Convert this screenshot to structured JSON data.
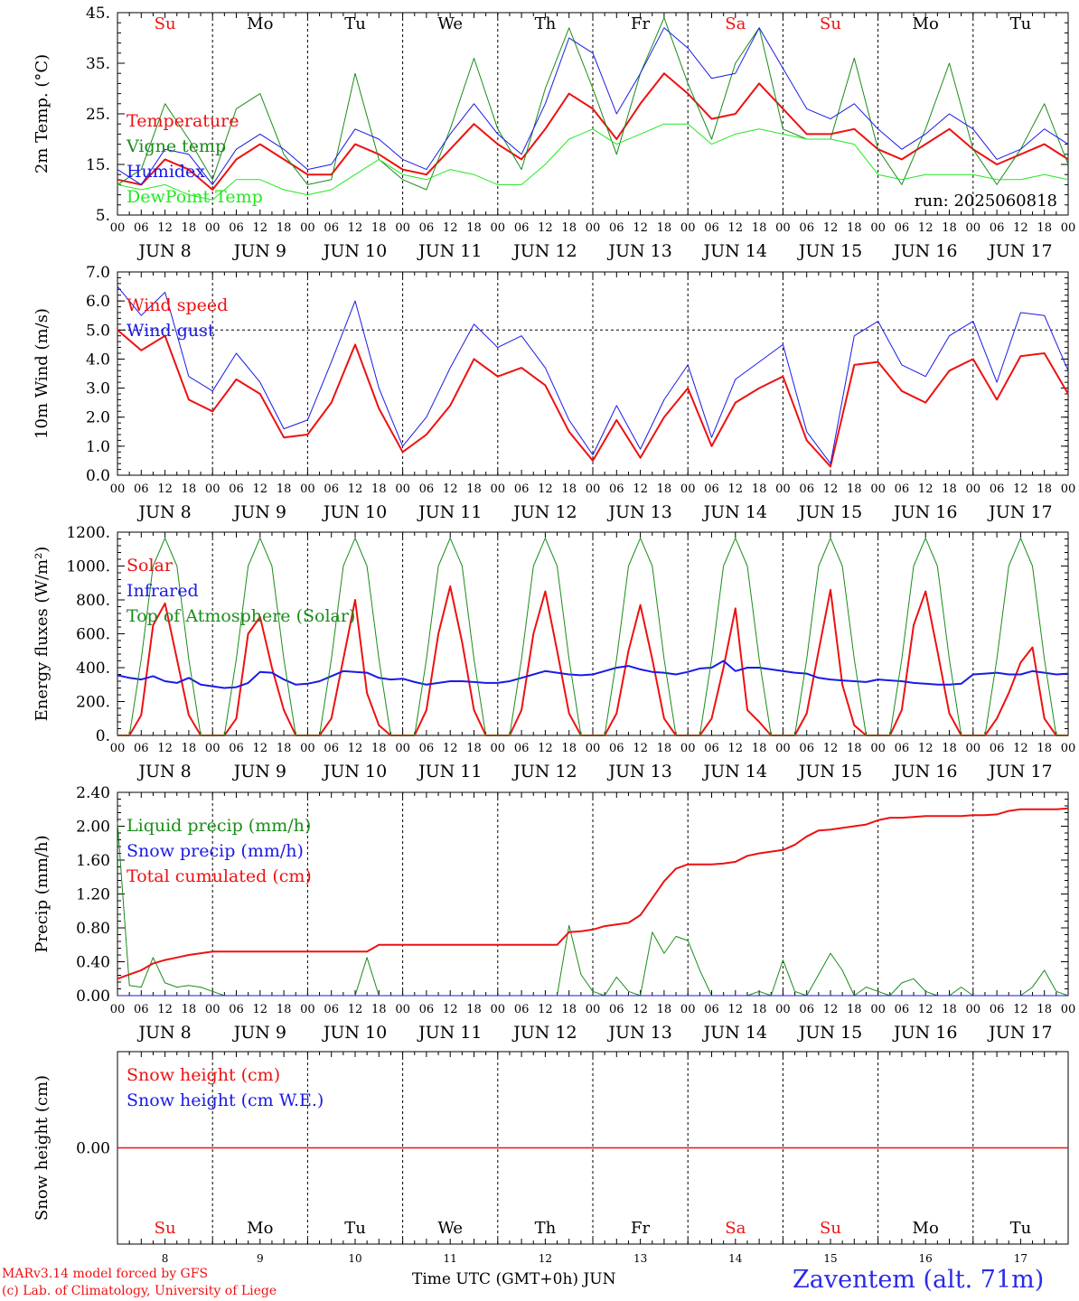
{
  "colors": {
    "red": "#ee1111",
    "green": "#1a8c1a",
    "blue": "#1a1ae8",
    "lime": "#22e822",
    "frame": "#000000"
  },
  "footer": {
    "credit_line_1": "MARv3.14 model forced by GFS",
    "credit_line_2": "(c) Lab. of Climatology, University of Liege",
    "xaxis_title": "Time UTC (GMT+0h) JUN",
    "station": "Zaventem (alt. 71m)"
  },
  "chart_data": [
    {
      "type": "line",
      "ylabel": "2m Temp. (°C)",
      "yticks": [
        "5.",
        "15.",
        "25.",
        "35.",
        "45."
      ],
      "ylim": [
        5,
        45
      ],
      "run_label": "run: 2025060818",
      "days": [
        "Su",
        "Mo",
        "Tu",
        "We",
        "Th",
        "Fr",
        "Sa",
        "Su",
        "Mo",
        "Tu"
      ],
      "day_colors": [
        "red",
        "black",
        "black",
        "black",
        "black",
        "black",
        "red",
        "red",
        "black",
        "black"
      ],
      "x_hours": [
        0,
        6,
        12,
        18,
        24,
        30,
        36,
        42,
        48,
        54,
        60,
        66,
        72,
        78,
        84,
        90,
        96,
        102,
        108,
        114,
        120,
        126,
        132,
        138,
        144,
        150,
        156,
        162,
        168,
        174,
        180,
        186,
        192,
        198,
        204,
        210,
        216,
        222,
        228,
        234,
        240
      ],
      "series": [
        {
          "name": "Temperature",
          "color": "red",
          "width": 2,
          "values": [
            12,
            11,
            16,
            14,
            10,
            16,
            19,
            16,
            13,
            13,
            19,
            17,
            14,
            13,
            18,
            23,
            19,
            16,
            22,
            29,
            26,
            20,
            27,
            33,
            29,
            24,
            25,
            31,
            26,
            21,
            21,
            22,
            18,
            16,
            19,
            22,
            18,
            15,
            17,
            19,
            16
          ]
        },
        {
          "name": "Vigne temp",
          "color": "green",
          "width": 1,
          "values": [
            11,
            14,
            27,
            20,
            12,
            26,
            29,
            17,
            11,
            12,
            33,
            16,
            12,
            10,
            22,
            36,
            22,
            14,
            30,
            42,
            30,
            17,
            33,
            44,
            31,
            20,
            35,
            42,
            22,
            20,
            20,
            36,
            18,
            11,
            22,
            35,
            18,
            11,
            18,
            27,
            15
          ]
        },
        {
          "name": "Humidex",
          "color": "blue",
          "width": 1,
          "values": [
            14,
            11,
            18,
            17,
            11,
            18,
            21,
            18,
            14,
            15,
            22,
            20,
            16,
            14,
            21,
            27,
            21,
            17,
            27,
            40,
            37,
            25,
            33,
            42,
            38,
            32,
            33,
            42,
            34,
            26,
            24,
            27,
            22,
            18,
            21,
            25,
            22,
            16,
            18,
            22,
            19
          ]
        },
        {
          "name": "DewPoint Temp",
          "color": "lime",
          "width": 1,
          "values": [
            11,
            10,
            11,
            9,
            8,
            12,
            12,
            10,
            9,
            10,
            13,
            16,
            13,
            12,
            14,
            13,
            11,
            11,
            15,
            20,
            22,
            19,
            21,
            23,
            23,
            19,
            21,
            22,
            21,
            20,
            20,
            19,
            13,
            12,
            13,
            13,
            13,
            12,
            12,
            13,
            12
          ]
        }
      ]
    },
    {
      "type": "line",
      "ylabel": "10m Wind (m/s)",
      "yticks": [
        "0.0",
        "1.0",
        "2.0",
        "3.0",
        "4.0",
        "5.0",
        "6.0",
        "7.0"
      ],
      "ylim": [
        0,
        7
      ],
      "reference_line": 5.0,
      "x_hours": [
        0,
        6,
        12,
        18,
        24,
        30,
        36,
        42,
        48,
        54,
        60,
        66,
        72,
        78,
        84,
        90,
        96,
        102,
        108,
        114,
        120,
        126,
        132,
        138,
        144,
        150,
        156,
        162,
        168,
        174,
        180,
        186,
        192,
        198,
        204,
        210,
        216,
        222,
        228,
        234,
        240
      ],
      "series": [
        {
          "name": "Wind speed",
          "color": "red",
          "width": 2,
          "values": [
            5.0,
            4.3,
            4.8,
            2.6,
            2.2,
            3.3,
            2.8,
            1.3,
            1.4,
            2.5,
            4.5,
            2.3,
            0.8,
            1.4,
            2.4,
            4.0,
            3.4,
            3.7,
            3.1,
            1.5,
            0.5,
            1.9,
            0.6,
            2.0,
            3.0,
            1.0,
            2.5,
            3.0,
            3.4,
            1.2,
            0.3,
            3.8,
            3.9,
            2.9,
            2.5,
            3.6,
            4.0,
            2.6,
            4.1,
            4.2,
            2.8
          ]
        },
        {
          "name": "Wind gust",
          "color": "blue",
          "width": 1,
          "values": [
            6.5,
            5.5,
            6.3,
            3.4,
            2.9,
            4.2,
            3.2,
            1.6,
            1.9,
            3.9,
            6.0,
            3.0,
            1.0,
            2.0,
            3.7,
            5.2,
            4.4,
            4.8,
            3.7,
            1.9,
            0.7,
            2.4,
            0.9,
            2.6,
            3.8,
            1.3,
            3.3,
            3.9,
            4.5,
            1.5,
            0.4,
            4.8,
            5.3,
            3.8,
            3.4,
            4.8,
            5.3,
            3.2,
            5.6,
            5.5,
            3.6
          ]
        }
      ]
    },
    {
      "type": "line",
      "ylabel": "Energy fluxes (W/m²)",
      "yticks": [
        "0.",
        "200.",
        "400.",
        "600.",
        "800.",
        "1000.",
        "1200."
      ],
      "ylim": [
        0,
        1200
      ],
      "x_hours": [
        0,
        3,
        6,
        9,
        12,
        15,
        18,
        21,
        24,
        27,
        30,
        33,
        36,
        39,
        42,
        45,
        48,
        51,
        54,
        57,
        60,
        63,
        66,
        69,
        72,
        75,
        78,
        81,
        84,
        87,
        90,
        93,
        96,
        99,
        102,
        105,
        108,
        111,
        114,
        117,
        120,
        123,
        126,
        129,
        132,
        135,
        138,
        141,
        144,
        147,
        150,
        153,
        156,
        159,
        162,
        165,
        168,
        171,
        174,
        177,
        180,
        183,
        186,
        189,
        192,
        195,
        198,
        201,
        204,
        207,
        210,
        213,
        216,
        219,
        222,
        225,
        228,
        231,
        234,
        237,
        240
      ],
      "series": [
        {
          "name": "Solar",
          "color": "red",
          "width": 2,
          "values": [
            0,
            0,
            120,
            650,
            780,
            450,
            120,
            0,
            0,
            0,
            100,
            600,
            700,
            400,
            150,
            0,
            0,
            0,
            100,
            450,
            800,
            250,
            60,
            0,
            0,
            0,
            150,
            600,
            880,
            550,
            150,
            0,
            0,
            0,
            150,
            600,
            850,
            500,
            130,
            0,
            0,
            0,
            130,
            500,
            770,
            450,
            100,
            0,
            0,
            0,
            100,
            400,
            750,
            150,
            80,
            0,
            0,
            0,
            130,
            500,
            860,
            300,
            60,
            0,
            0,
            0,
            150,
            650,
            850,
            500,
            130,
            0,
            0,
            0,
            100,
            250,
            430,
            520,
            100,
            0,
            0
          ]
        },
        {
          "name": "Infrared",
          "color": "blue",
          "width": 2,
          "values": [
            355,
            340,
            330,
            350,
            320,
            310,
            340,
            300,
            290,
            280,
            285,
            310,
            375,
            370,
            330,
            300,
            305,
            320,
            350,
            380,
            375,
            370,
            340,
            330,
            335,
            315,
            300,
            310,
            320,
            320,
            315,
            310,
            310,
            320,
            340,
            360,
            380,
            370,
            360,
            355,
            360,
            380,
            400,
            410,
            390,
            375,
            370,
            360,
            375,
            395,
            400,
            440,
            380,
            400,
            400,
            390,
            380,
            370,
            365,
            340,
            330,
            325,
            320,
            315,
            330,
            325,
            320,
            310,
            305,
            300,
            300,
            305,
            360,
            365,
            370,
            360,
            360,
            380,
            370,
            360,
            365
          ]
        },
        {
          "name": "Top of Atmosphere (Solar)",
          "color": "green",
          "width": 1,
          "values": [
            0,
            0,
            450,
            1000,
            1165,
            1000,
            450,
            0,
            0,
            0,
            450,
            1000,
            1165,
            1000,
            450,
            0,
            0,
            0,
            450,
            1000,
            1165,
            1000,
            450,
            0,
            0,
            0,
            450,
            1000,
            1165,
            1000,
            450,
            0,
            0,
            0,
            450,
            1000,
            1165,
            1000,
            450,
            0,
            0,
            0,
            450,
            1000,
            1165,
            1000,
            450,
            0,
            0,
            0,
            450,
            1000,
            1165,
            1000,
            450,
            0,
            0,
            0,
            450,
            1000,
            1165,
            1000,
            450,
            0,
            0,
            0,
            450,
            1000,
            1165,
            1000,
            450,
            0,
            0,
            0,
            450,
            1000,
            1165,
            1000,
            450,
            0,
            0
          ]
        }
      ]
    },
    {
      "type": "line",
      "ylabel": "Precip (mm/h)",
      "yticks": [
        "0.00",
        "0.40",
        "0.80",
        "1.20",
        "1.60",
        "2.00",
        "2.40"
      ],
      "ylim": [
        0,
        2.4
      ],
      "x_hours": [
        0,
        3,
        6,
        9,
        12,
        15,
        18,
        21,
        24,
        27,
        30,
        33,
        36,
        39,
        42,
        45,
        48,
        51,
        54,
        57,
        60,
        63,
        66,
        69,
        72,
        75,
        78,
        81,
        84,
        87,
        90,
        93,
        96,
        99,
        102,
        105,
        108,
        111,
        114,
        117,
        120,
        123,
        126,
        129,
        132,
        135,
        138,
        141,
        144,
        147,
        150,
        153,
        156,
        159,
        162,
        165,
        168,
        171,
        174,
        177,
        180,
        183,
        186,
        189,
        192,
        195,
        198,
        201,
        204,
        207,
        210,
        213,
        216,
        219,
        222,
        225,
        228,
        231,
        234,
        237,
        240
      ],
      "series": [
        {
          "name": "Liquid precip (mm/h)",
          "color": "green",
          "width": 1,
          "values": [
            2.05,
            0.12,
            0.1,
            0.45,
            0.15,
            0.1,
            0.12,
            0.1,
            0.05,
            0.0,
            0.0,
            0.0,
            0.0,
            0.0,
            0.0,
            0.0,
            0.0,
            0.0,
            0.0,
            0.0,
            0.0,
            0.45,
            0.0,
            0.0,
            0.0,
            0.0,
            0.0,
            0.0,
            0.0,
            0.0,
            0.0,
            0.0,
            0.0,
            0.0,
            0.0,
            0.0,
            0.0,
            0.0,
            0.83,
            0.25,
            0.05,
            0.0,
            0.22,
            0.05,
            0.0,
            0.75,
            0.5,
            0.7,
            0.65,
            0.3,
            0.0,
            0.0,
            0.0,
            0.0,
            0.05,
            0.0,
            0.42,
            0.05,
            0.0,
            0.25,
            0.5,
            0.3,
            0.0,
            0.1,
            0.05,
            0.0,
            0.15,
            0.2,
            0.05,
            0.0,
            0.0,
            0.1,
            0.0,
            0.0,
            0.0,
            0.0,
            0.0,
            0.1,
            0.3,
            0.05,
            0.0
          ]
        },
        {
          "name": "Snow precip (mm/h)",
          "color": "blue",
          "width": 1,
          "values": [
            0,
            0,
            0,
            0,
            0,
            0,
            0,
            0,
            0,
            0,
            0,
            0,
            0,
            0,
            0,
            0,
            0,
            0,
            0,
            0,
            0,
            0,
            0,
            0,
            0,
            0,
            0,
            0,
            0,
            0,
            0,
            0,
            0,
            0,
            0,
            0,
            0,
            0,
            0,
            0,
            0,
            0,
            0,
            0,
            0,
            0,
            0,
            0,
            0,
            0,
            0,
            0,
            0,
            0,
            0,
            0,
            0,
            0,
            0,
            0,
            0,
            0,
            0,
            0,
            0,
            0,
            0,
            0,
            0,
            0,
            0,
            0,
            0,
            0,
            0,
            0,
            0,
            0,
            0,
            0,
            0
          ]
        },
        {
          "name": "Total cumulated (cm)",
          "color": "red",
          "width": 2,
          "values": [
            0.2,
            0.25,
            0.3,
            0.38,
            0.42,
            0.45,
            0.48,
            0.5,
            0.52,
            0.52,
            0.52,
            0.52,
            0.52,
            0.52,
            0.52,
            0.52,
            0.52,
            0.52,
            0.52,
            0.52,
            0.52,
            0.52,
            0.6,
            0.6,
            0.6,
            0.6,
            0.6,
            0.6,
            0.6,
            0.6,
            0.6,
            0.6,
            0.6,
            0.6,
            0.6,
            0.6,
            0.6,
            0.6,
            0.75,
            0.76,
            0.78,
            0.82,
            0.84,
            0.86,
            0.95,
            1.15,
            1.35,
            1.5,
            1.55,
            1.55,
            1.55,
            1.56,
            1.58,
            1.65,
            1.68,
            1.7,
            1.72,
            1.78,
            1.88,
            1.95,
            1.96,
            1.98,
            2.0,
            2.02,
            2.07,
            2.1,
            2.1,
            2.11,
            2.12,
            2.12,
            2.12,
            2.12,
            2.13,
            2.13,
            2.14,
            2.18,
            2.2,
            2.2,
            2.2,
            2.2,
            2.21
          ]
        }
      ]
    },
    {
      "type": "line",
      "ylabel": "Snow height (cm)",
      "yticks": [
        "0.00"
      ],
      "ylim": [
        -1,
        1
      ],
      "x_hours": [
        0,
        240
      ],
      "series": [
        {
          "name": "Snow height (cm)",
          "color": "red",
          "width": 1.5,
          "values": [
            0,
            0
          ]
        },
        {
          "name": "Snow height (cm W.E.)",
          "color": "blue",
          "width": 1.5,
          "values": []
        }
      ]
    }
  ],
  "hour_labels": [
    "00",
    "06",
    "12",
    "18"
  ],
  "date_labels": [
    "JUN  8",
    "JUN  9",
    "JUN 10",
    "JUN 11",
    "JUN 12",
    "JUN 13",
    "JUN 14",
    "JUN 15",
    "JUN 16",
    "JUN 17"
  ],
  "bottom_day_numbers": [
    "8",
    "9",
    "10",
    "11",
    "12",
    "13",
    "14",
    "15",
    "16",
    "17"
  ]
}
